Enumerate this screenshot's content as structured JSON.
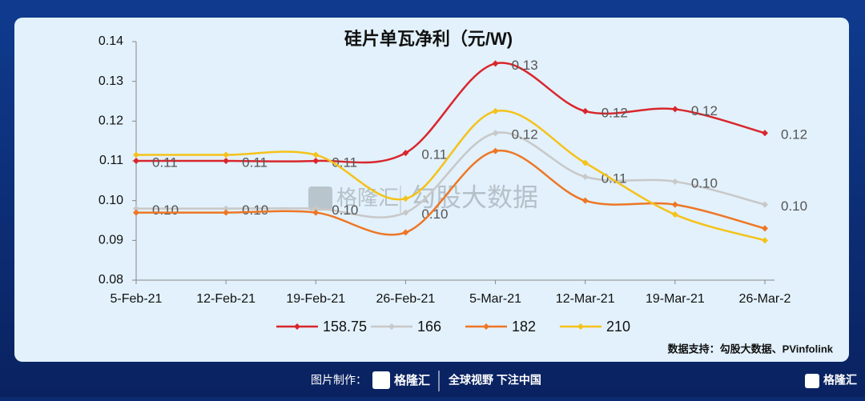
{
  "chart_data": {
    "type": "line",
    "title": "硅片单瓦净利（元/W)",
    "categories": [
      "5-Feb-21",
      "12-Feb-21",
      "19-Feb-21",
      "26-Feb-21",
      "5-Mar-21",
      "12-Mar-21",
      "19-Mar-21",
      "26-Mar-2"
    ],
    "series": [
      {
        "name": "158.75",
        "color": "#d9262c",
        "values": [
          0.11,
          0.11,
          0.11,
          0.112,
          0.1345,
          0.1225,
          0.123,
          0.117
        ],
        "value_labels": [
          "0.11",
          "0.11",
          "0.11",
          "0.11",
          "0.13",
          "0.12",
          "0.12",
          "0.12"
        ]
      },
      {
        "name": "166",
        "color": "#c8c8c8",
        "values": [
          0.098,
          0.098,
          0.098,
          0.097,
          0.117,
          0.106,
          0.1048,
          0.099
        ],
        "value_labels": [
          "0.10",
          "0.10",
          "0.10",
          "0.10",
          "0.12",
          "0.11",
          "0.10",
          "0.10"
        ]
      },
      {
        "name": "182",
        "color": "#ee7625",
        "values": [
          0.097,
          0.097,
          0.097,
          0.092,
          0.1125,
          0.1,
          0.099,
          0.093
        ]
      },
      {
        "name": "210",
        "color": "#f5c21a",
        "values": [
          0.1115,
          0.1115,
          0.1115,
          0.1005,
          0.1225,
          0.1095,
          0.0965,
          0.09
        ]
      }
    ],
    "ylim": [
      0.08,
      0.14
    ],
    "yticks": [
      {
        "value": 0.08,
        "label": "0.08"
      },
      {
        "value": 0.09,
        "label": "0.09"
      },
      {
        "value": 0.1,
        "label": "0.10"
      },
      {
        "value": 0.11,
        "label": "0.11"
      },
      {
        "value": 0.12,
        "label": "0.12"
      },
      {
        "value": 0.13,
        "label": "0.13"
      },
      {
        "value": 0.14,
        "label": "0.14"
      }
    ],
    "source": "数据支持：勾股大数据、PVinfolink",
    "watermark": [
      "格隆汇",
      "勾股大数据"
    ]
  },
  "footer": {
    "made_by": "图片制作：",
    "brand": "格隆汇",
    "slogan": "全球视野 下注中国",
    "corner_brand": "格隆汇"
  }
}
